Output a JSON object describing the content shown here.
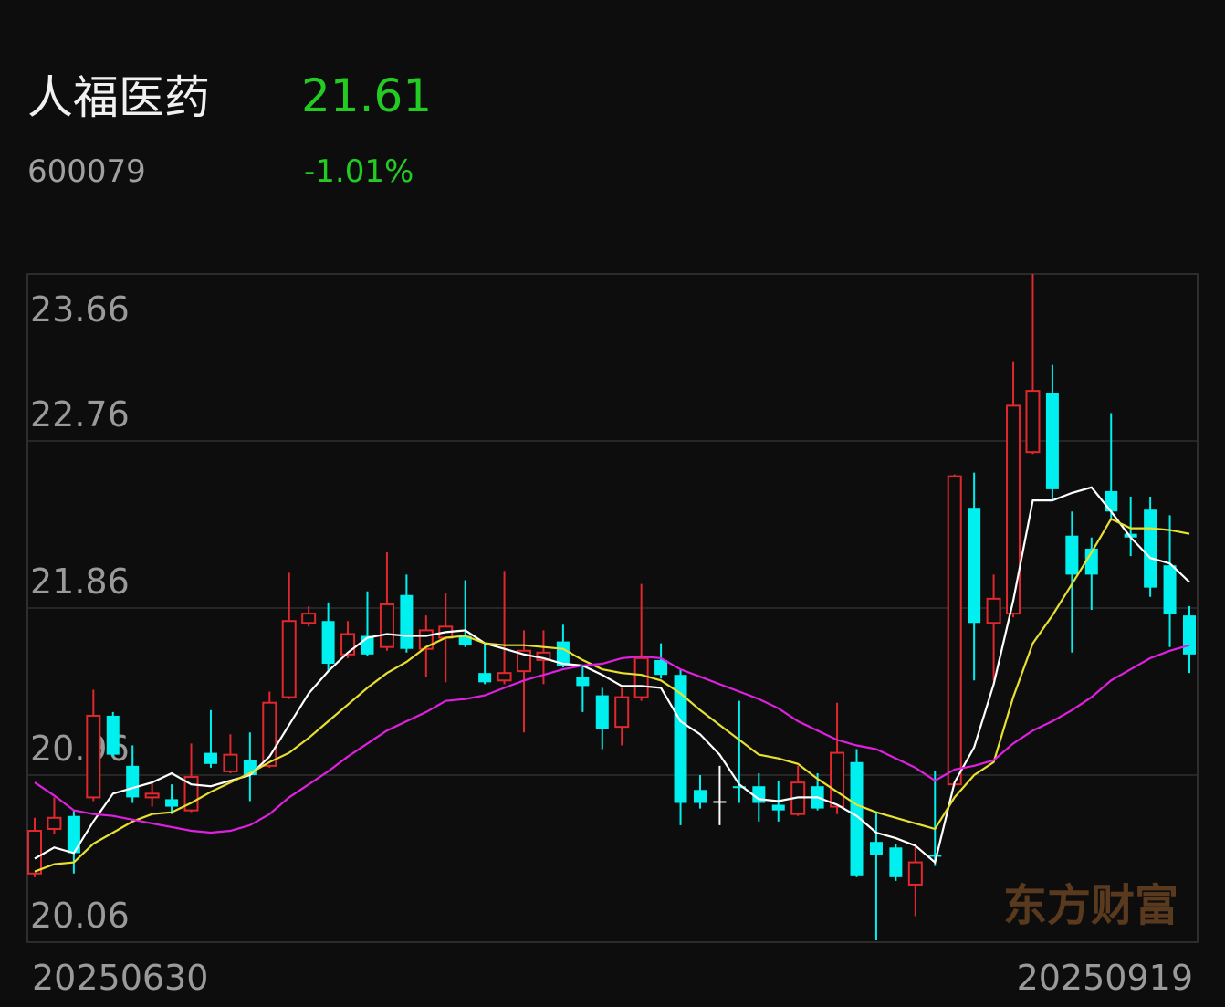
{
  "chart_data": {
    "type": "candlestick",
    "title": "人福医药",
    "code": "600079",
    "last_price": "21.61",
    "change": "-1.01%",
    "watermark": "东方财富",
    "categories": [
      "20250630",
      null,
      null,
      null,
      null,
      null,
      null,
      null,
      null,
      null,
      null,
      null,
      null,
      null,
      null,
      null,
      null,
      null,
      null,
      null,
      null,
      null,
      null,
      null,
      null,
      null,
      null,
      null,
      null,
      null,
      null,
      null,
      null,
      null,
      null,
      null,
      null,
      null,
      null,
      null,
      null,
      null,
      null,
      null,
      null,
      null,
      null,
      null,
      null,
      null,
      null,
      null,
      null,
      null,
      null,
      null,
      null,
      null,
      null,
      "20250919"
    ],
    "open": [
      20.43,
      20.67,
      20.74,
      20.84,
      21.28,
      21.01,
      20.84,
      20.83,
      20.77,
      21.08,
      20.98,
      21.04,
      21.01,
      21.38,
      21.78,
      21.79,
      21.61,
      21.71,
      21.65,
      21.93,
      21.64,
      21.7,
      21.71,
      21.51,
      21.47,
      21.52,
      21.58,
      21.68,
      21.49,
      21.39,
      21.22,
      21.38,
      21.58,
      21.5,
      20.88,
      20.82,
      20.9,
      20.9,
      20.8,
      20.75,
      20.9,
      20.79,
      21.03,
      20.6,
      20.57,
      20.37,
      20.53,
      20.91,
      22.4,
      21.78,
      21.83,
      22.7,
      23.02,
      22.25,
      22.18,
      22.49,
      22.26,
      22.39,
      22.09,
      21.82
    ],
    "high": [
      20.73,
      20.84,
      20.77,
      21.42,
      21.3,
      21.12,
      20.92,
      20.91,
      21.13,
      21.31,
      21.18,
      21.19,
      21.41,
      22.05,
      21.87,
      21.89,
      21.79,
      21.95,
      22.16,
      22.04,
      21.82,
      21.94,
      22.01,
      21.67,
      22.06,
      21.74,
      21.74,
      21.77,
      21.55,
      21.43,
      21.43,
      21.99,
      21.67,
      21.53,
      20.96,
      21.01,
      21.36,
      20.97,
      20.93,
      21.01,
      20.97,
      21.35,
      21.1,
      20.76,
      20.59,
      20.58,
      20.98,
      22.58,
      22.59,
      22.04,
      23.19,
      23.66,
      23.17,
      22.38,
      22.24,
      22.91,
      22.46,
      22.46,
      22.36,
      21.87
    ],
    "low": [
      20.41,
      20.64,
      20.43,
      20.82,
      21.06,
      20.81,
      20.79,
      20.75,
      20.76,
      21.0,
      20.97,
      20.82,
      21.0,
      21.37,
      21.76,
      21.52,
      21.59,
      21.6,
      21.63,
      21.62,
      21.49,
      21.46,
      21.65,
      21.45,
      21.45,
      21.19,
      21.45,
      21.54,
      21.3,
      21.1,
      21.12,
      21.36,
      21.48,
      20.69,
      20.78,
      20.69,
      20.81,
      20.71,
      20.71,
      20.74,
      20.77,
      20.75,
      20.41,
      20.07,
      20.39,
      20.2,
      20.47,
      20.9,
      21.47,
      21.47,
      21.81,
      22.69,
      22.44,
      21.62,
      21.85,
      22.33,
      22.14,
      21.92,
      21.65,
      21.51
    ],
    "close": [
      20.66,
      20.73,
      20.54,
      21.28,
      21.07,
      20.84,
      20.86,
      20.79,
      20.95,
      21.02,
      21.07,
      20.96,
      21.35,
      21.79,
      21.83,
      21.56,
      21.72,
      21.61,
      21.88,
      21.64,
      21.74,
      21.76,
      21.66,
      21.46,
      21.51,
      21.63,
      21.62,
      21.55,
      21.44,
      21.21,
      21.38,
      21.59,
      21.5,
      20.81,
      20.81,
      20.82,
      20.89,
      20.81,
      20.77,
      20.92,
      20.78,
      21.08,
      20.42,
      20.53,
      20.41,
      20.49,
      20.52,
      22.57,
      21.78,
      21.91,
      22.95,
      23.03,
      22.5,
      22.04,
      22.04,
      22.38,
      22.24,
      21.97,
      21.83,
      21.61
    ],
    "up_color": "#e0282e",
    "down_color": "#00f0f0",
    "flat_color": "#ffffff",
    "lines": [
      {
        "color": "#ffffff",
        "values": [
          20.51,
          20.57,
          20.54,
          20.71,
          20.86,
          20.89,
          20.92,
          20.97,
          20.91,
          20.9,
          20.93,
          20.96,
          21.06,
          21.23,
          21.4,
          21.52,
          21.62,
          21.7,
          21.72,
          21.71,
          21.71,
          21.73,
          21.74,
          21.67,
          21.64,
          21.61,
          21.59,
          21.56,
          21.55,
          21.5,
          21.44,
          21.44,
          21.43,
          21.25,
          21.18,
          21.07,
          20.91,
          20.83,
          20.82,
          20.84,
          20.84,
          20.8,
          20.74,
          20.65,
          20.62,
          20.58,
          20.49,
          20.92,
          21.11,
          21.45,
          21.9,
          22.44,
          22.44,
          22.48,
          22.51,
          22.38,
          22.24,
          22.13,
          22.1,
          22.0
        ]
      },
      {
        "color": "#e8e030",
        "values": [
          20.44,
          20.48,
          20.49,
          20.59,
          20.65,
          20.71,
          20.75,
          20.76,
          20.81,
          20.87,
          20.92,
          20.97,
          21.03,
          21.08,
          21.16,
          21.25,
          21.34,
          21.43,
          21.51,
          21.57,
          21.65,
          21.7,
          21.71,
          21.67,
          21.66,
          21.66,
          21.65,
          21.64,
          21.58,
          21.53,
          21.51,
          21.5,
          21.47,
          21.4,
          21.31,
          21.23,
          21.15,
          21.07,
          21.05,
          21.02,
          20.94,
          20.87,
          20.8,
          20.76,
          20.73,
          20.7,
          20.67,
          20.84,
          20.96,
          21.03,
          21.38,
          21.67,
          21.82,
          21.99,
          22.16,
          22.34,
          22.29,
          22.29,
          22.28,
          22.26
        ]
      },
      {
        "color": "#e020e0",
        "values": [
          20.92,
          20.85,
          20.77,
          20.75,
          20.74,
          20.72,
          20.7,
          20.68,
          20.66,
          20.65,
          20.66,
          20.69,
          20.75,
          20.84,
          20.91,
          20.98,
          21.06,
          21.13,
          21.2,
          21.25,
          21.3,
          21.36,
          21.37,
          21.39,
          21.43,
          21.47,
          21.5,
          21.53,
          21.55,
          21.56,
          21.59,
          21.6,
          21.59,
          21.53,
          21.49,
          21.45,
          21.41,
          21.37,
          21.32,
          21.25,
          21.2,
          21.15,
          21.12,
          21.1,
          21.05,
          21.0,
          20.93,
          20.99,
          21.01,
          21.04,
          21.13,
          21.2,
          21.25,
          21.31,
          21.38,
          21.47,
          21.53,
          21.59,
          21.63,
          21.66
        ]
      }
    ],
    "ylim": [
      20.06,
      23.66
    ],
    "yticks": [
      23.66,
      22.76,
      21.86,
      20.96,
      20.06
    ],
    "grid": true
  }
}
